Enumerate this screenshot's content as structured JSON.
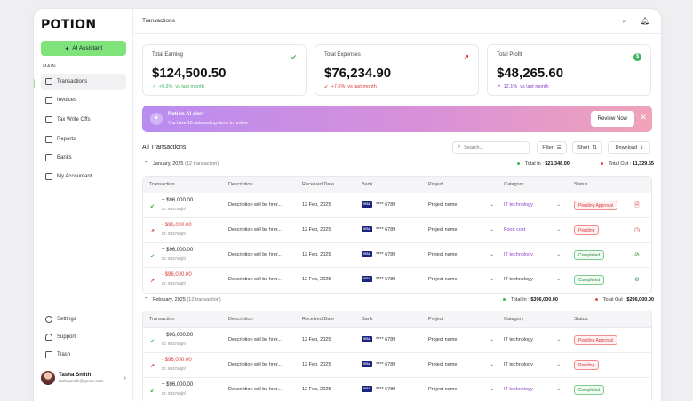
{
  "app": {
    "logo": "POTION"
  },
  "sidebar": {
    "ai_button": "AI Assistant",
    "section_label": "MAIN",
    "items": [
      {
        "label": "Transactions",
        "icon": "transactions-icon"
      },
      {
        "label": "Invoices",
        "icon": "invoice-icon"
      },
      {
        "label": "Tax Write Offs",
        "icon": "tax-icon"
      },
      {
        "label": "Reports",
        "icon": "reports-icon"
      },
      {
        "label": "Banks",
        "icon": "bank-icon"
      },
      {
        "label": "My Accountant",
        "icon": "accountant-icon"
      }
    ],
    "bottom_items": [
      {
        "label": "Settings",
        "icon": "gear-icon"
      },
      {
        "label": "Support",
        "icon": "headset-icon"
      },
      {
        "label": "Trash",
        "icon": "trash-icon"
      }
    ],
    "user": {
      "name": "Tasha Smith",
      "email": "tashasmith@gmon.com"
    }
  },
  "header": {
    "title": "Transactions"
  },
  "cards": [
    {
      "title": "Total Earning",
      "value": "$124,500.50",
      "trend": "+9.3%",
      "trend_suffix": "vs last month",
      "trend_color": "#3bb35a",
      "icon": "↙",
      "icon_color": "#3bb35a"
    },
    {
      "title": "Total Expenses",
      "value": "$76,234.90",
      "trend": "+7.6%",
      "trend_suffix": "vs last month",
      "trend_color": "#d83a3a",
      "icon": "↗",
      "icon_color": "#d83a3a"
    },
    {
      "title": "Total Profit",
      "value": "$48,265.60",
      "trend": "12.1%",
      "trend_suffix": "vs last month",
      "trend_color": "#8a3fc8",
      "icon": "$",
      "icon_color": "#3bb35a"
    }
  ],
  "alert": {
    "title": "Potion AI alert",
    "subtitle": "You have 10 outstanding items to review",
    "button": "Review Now"
  },
  "transactions_section": {
    "title": "All Transactions",
    "search_placeholder": "Search...",
    "filter_label": "Filter",
    "sort_label": "Short",
    "download_label": "Download",
    "columns": [
      "Transaction",
      "Description",
      "Received Date",
      "Bank",
      "Project",
      "Category",
      "Status"
    ]
  },
  "groups": [
    {
      "month": "January, 2025",
      "count": "(12 transaction)",
      "total_in_label": "Total In :",
      "total_in": "$21,348.00",
      "total_out_label": "Total Out :",
      "total_out": "11,329.55",
      "rows": [
        {
          "amount": "+ $96,000.00",
          "id": "ID: 9837a4jhf",
          "sign": "pos",
          "desc": "Description will be hrer...",
          "date": "12 Feb, 2025",
          "bank": "**** 6789",
          "project": "Project name",
          "category": "IT technology",
          "cat_purple": true,
          "status": "Pending Approval",
          "status_color": "red",
          "action": "file-icon"
        },
        {
          "amount": "- $96,000.00",
          "id": "ID: 9837a4jhf",
          "sign": "neg",
          "desc": "Description will be hrer...",
          "date": "12 Feb, 2025",
          "bank": "**** 6789",
          "project": "Project name",
          "category": "Food cost",
          "cat_purple": true,
          "status": "Pending",
          "status_color": "red",
          "action": "clock-icon"
        },
        {
          "amount": "+ $96,000.00",
          "id": "ID: 9837a4jhf",
          "sign": "pos",
          "desc": "Description will be hrer...",
          "date": "12 Feb, 2025",
          "bank": "**** 6789",
          "project": "Project name",
          "category": "IT technology",
          "cat_purple": true,
          "status": "Completed",
          "status_color": "green",
          "action": "check-icon"
        },
        {
          "amount": "- $96,000.00",
          "id": "ID: 9837a4jhf",
          "sign": "neg",
          "desc": "Description will be hrer...",
          "date": "12 Feb, 2025",
          "bank": "**** 6789",
          "project": "Project name",
          "category": "IT technology",
          "cat_purple": false,
          "status": "Completed",
          "status_color": "green",
          "action": "check-icon"
        }
      ]
    },
    {
      "month": "February, 2025",
      "count": "(12 transaction)",
      "total_in_label": "Total In :",
      "total_in": "$396,000.00",
      "total_out_label": "Total Out :",
      "total_out": "$296,000.00",
      "rows": [
        {
          "amount": "+ $96,000.00",
          "id": "ID: 9837a4jhf",
          "sign": "pos",
          "desc": "Description will be hrer...",
          "date": "12 Feb, 2025",
          "bank": "**** 6789",
          "project": "Project name",
          "category": "IT technology",
          "cat_purple": false,
          "status": "Pending Approval",
          "status_color": "red",
          "action": ""
        },
        {
          "amount": "- $96,000.00",
          "id": "ID: 9837a4jhf",
          "sign": "neg",
          "desc": "Description will be hrer...",
          "date": "12 Feb, 2025",
          "bank": "**** 6789",
          "project": "Project name",
          "category": "IT technology",
          "cat_purple": false,
          "status": "Pending",
          "status_color": "red",
          "action": ""
        },
        {
          "amount": "+ $96,000.00",
          "id": "ID: 9837a4jhf",
          "sign": "pos",
          "desc": "Description will be hrer...",
          "date": "12 Feb, 2025",
          "bank": "**** 6789",
          "project": "Project name",
          "category": "IT technology",
          "cat_purple": true,
          "status": "Completed",
          "status_color": "green",
          "action": ""
        }
      ]
    }
  ]
}
